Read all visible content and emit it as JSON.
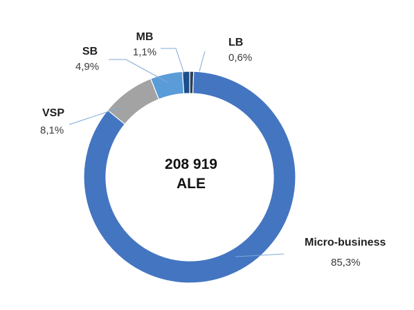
{
  "chart_data": {
    "type": "pie",
    "variant": "donut",
    "categories": [
      "LB",
      "Micro-business",
      "VSP",
      "SB",
      "MB"
    ],
    "values": [
      0.6,
      85.3,
      8.1,
      4.9,
      1.1
    ],
    "value_labels": [
      "0,6%",
      "85,3%",
      "8,1%",
      "4,9%",
      "1,1%"
    ],
    "colors": [
      "#2b3f55",
      "#4475c1",
      "#a3a3a3",
      "#5a9cd8",
      "#1d4f8c"
    ],
    "leader_color": "#7fa8d6",
    "center_text": [
      "208 919",
      "ALE"
    ],
    "legend": "none",
    "start_angle": 0,
    "direction": "clockwise"
  }
}
